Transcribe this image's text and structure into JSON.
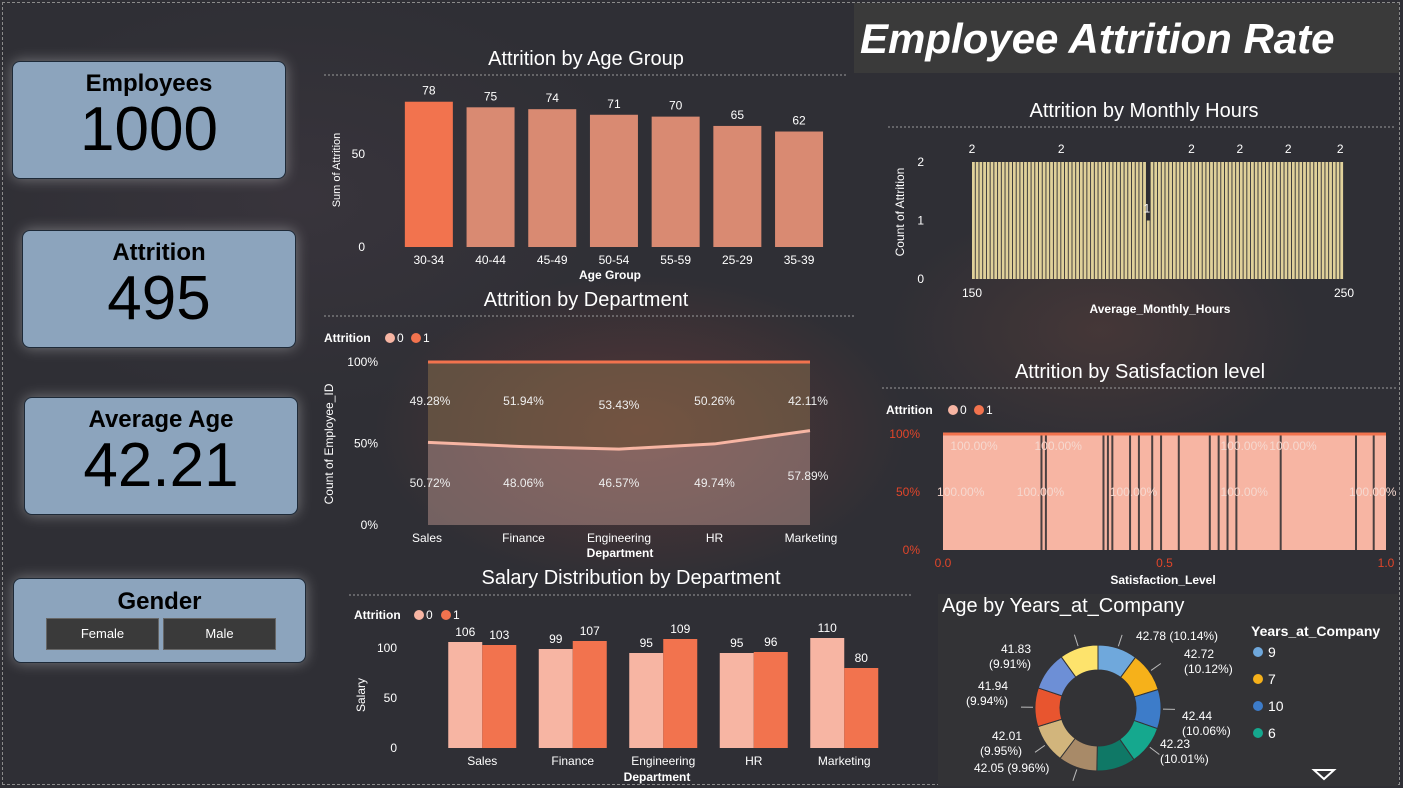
{
  "kpis": {
    "employees": {
      "label": "Employees",
      "value": "1000"
    },
    "attrition": {
      "label": "Attrition",
      "value": "495"
    },
    "average_age": {
      "label": "Average Age",
      "value": "42.21"
    }
  },
  "gender": {
    "label": "Gender",
    "options": [
      "Female",
      "Male"
    ]
  },
  "dashboard_title": "Employee Attrition Rate",
  "colors": {
    "attr0": "#f7b5a3",
    "attr1": "#f2734e",
    "bar_mid": "#d98a72",
    "hours": "#e0d19a"
  },
  "chart_data": [
    {
      "id": "age_group",
      "type": "bar",
      "title": "Attrition by Age Group",
      "xlabel": "Age Group",
      "ylabel": "Sum of Attrition",
      "ylim": [
        0,
        80
      ],
      "yticks": [
        0,
        50
      ],
      "categories": [
        "30-34",
        "40-44",
        "45-49",
        "50-54",
        "55-59",
        "25-29",
        "35-39"
      ],
      "values": [
        78,
        75,
        74,
        71,
        70,
        65,
        62
      ]
    },
    {
      "id": "department",
      "type": "area",
      "title": "Attrition by Department",
      "xlabel": "Department",
      "ylabel": "Count of Employee_ID",
      "legend_title": "Attrition",
      "legend": [
        "0",
        "1"
      ],
      "yticks": [
        "0%",
        "50%",
        "100%"
      ],
      "categories": [
        "Sales",
        "Finance",
        "Engineering",
        "HR",
        "Marketing"
      ],
      "series": [
        {
          "name": "0",
          "values": [
            50.72,
            48.06,
            46.57,
            49.74,
            57.89
          ],
          "labels": [
            "50.72%",
            "48.06%",
            "46.57%",
            "49.74%",
            "57.89%"
          ]
        },
        {
          "name": "1",
          "values": [
            49.28,
            51.94,
            53.43,
            50.26,
            42.11
          ],
          "labels": [
            "49.28%",
            "51.94%",
            "53.43%",
            "50.26%",
            "42.11%"
          ]
        }
      ]
    },
    {
      "id": "salary",
      "type": "bar",
      "title": "Salary Distribution by Department",
      "xlabel": "Department",
      "ylabel": "Salary",
      "legend_title": "Attrition",
      "legend": [
        "0",
        "1"
      ],
      "ylim": [
        0,
        120
      ],
      "yticks": [
        0,
        50,
        100
      ],
      "categories": [
        "Sales",
        "Finance",
        "Engineering",
        "HR",
        "Marketing"
      ],
      "series": [
        {
          "name": "0",
          "values": [
            106,
            99,
            95,
            95,
            110
          ]
        },
        {
          "name": "1",
          "values": [
            103,
            107,
            109,
            96,
            80
          ]
        }
      ]
    },
    {
      "id": "monthly_hours",
      "type": "bar",
      "title": "Attrition by Monthly Hours",
      "xlabel": "Average_Monthly_Hours",
      "ylabel": "Count of Attrition",
      "xlim": [
        150,
        250
      ],
      "xticks": [
        150,
        200,
        250
      ],
      "ylim": [
        0,
        2
      ],
      "yticks": [
        0,
        1,
        2
      ],
      "bar_value": 2,
      "dip_x": 197,
      "dip_value": 1,
      "top_labels": [
        {
          "x": 150,
          "label": "2"
        },
        {
          "x": 174,
          "label": "2"
        },
        {
          "x": 209,
          "label": "2"
        },
        {
          "x": 222,
          "label": "2"
        },
        {
          "x": 235,
          "label": "2"
        },
        {
          "x": 249,
          "label": "2"
        }
      ],
      "dip_label": "1"
    },
    {
      "id": "satisfaction",
      "type": "area",
      "title": "Attrition by Satisfaction level",
      "xlabel": "Satisfaction_Level",
      "legend_title": "Attrition",
      "legend": [
        "0",
        "1"
      ],
      "xlim": [
        0,
        1
      ],
      "xticks": [
        "0.0",
        "0.5",
        "1.0"
      ],
      "yticks": [
        "0%",
        "50%",
        "100%"
      ],
      "gaps_x": [
        0.22,
        0.23,
        0.36,
        0.37,
        0.38,
        0.42,
        0.44,
        0.47,
        0.49,
        0.53,
        0.6,
        0.62,
        0.64,
        0.66,
        0.76,
        0.93,
        0.97
      ],
      "labels": [
        {
          "x": 0.07,
          "y": 100,
          "text": "100.00%"
        },
        {
          "x": 0.26,
          "y": 100,
          "text": "100.00%"
        },
        {
          "x": 0.68,
          "y": 100,
          "text": "100.00%"
        },
        {
          "x": 0.79,
          "y": 100,
          "text": "100.00%"
        },
        {
          "x": 0.04,
          "y": 50,
          "text": "100.00%"
        },
        {
          "x": 0.22,
          "y": 50,
          "text": "100.00%"
        },
        {
          "x": 0.43,
          "y": 50,
          "text": "100.00%"
        },
        {
          "x": 0.68,
          "y": 50,
          "text": "100.00%"
        },
        {
          "x": 0.97,
          "y": 50,
          "text": "100.00%"
        }
      ]
    },
    {
      "id": "years_at_company",
      "type": "pie",
      "title": "Age by Years_at_Company",
      "legend_title": "Years_at_Company",
      "legend": [
        {
          "label": "9",
          "color": "#6fa8dc"
        },
        {
          "label": "7",
          "color": "#f6b11a"
        },
        {
          "label": "10",
          "color": "#3d7cc9"
        },
        {
          "label": "6",
          "color": "#15a88e"
        }
      ],
      "slices": [
        {
          "value": 42.78,
          "label": "42.78 (10.14%)",
          "color": "#6fa8dc"
        },
        {
          "value": 42.72,
          "label": "42.72 (10.12%)",
          "color": "#f6b11a"
        },
        {
          "value": 42.44,
          "label": "42.44 (10.06%)",
          "color": "#3d7cc9"
        },
        {
          "value": 42.23,
          "label": "42.23 (10.01%)",
          "color": "#15a88e"
        },
        {
          "value": 42.11,
          "label": "",
          "color": "#0f7866"
        },
        {
          "value": 42.05,
          "label": "42.05 (9.96%)",
          "color": "#a88a68"
        },
        {
          "value": 42.01,
          "label": "42.01 (9.95%)",
          "color": "#d2b57c"
        },
        {
          "value": 41.94,
          "label": "41.94 (9.94%)",
          "color": "#e8552f"
        },
        {
          "value": 41.9,
          "label": "",
          "color": "#6d8fd6"
        },
        {
          "value": 41.83,
          "label": "41.83 (9.91%)",
          "color": "#fde36c"
        }
      ]
    }
  ]
}
